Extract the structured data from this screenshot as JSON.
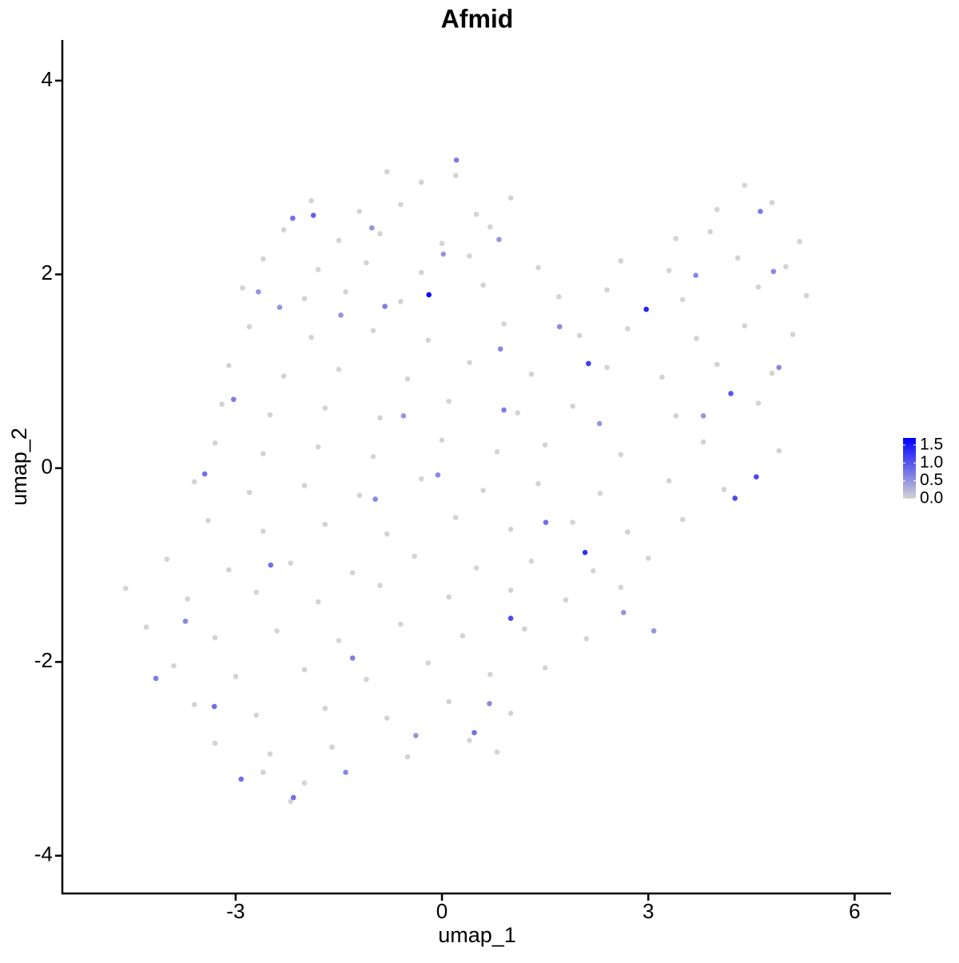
{
  "chart_data": {
    "type": "scatter",
    "title": "Afmid",
    "x_label": "umap_1",
    "y_label": "umap_2",
    "xlim": [
      -5.52,
      6.53
    ],
    "ylim": [
      -4.39,
      4.42
    ],
    "xticks": [
      -3,
      0,
      3,
      6
    ],
    "yticks": [
      -4,
      -2,
      0,
      2,
      4
    ],
    "color_low": "#d3d3d3",
    "color_high": "#0000ff",
    "color_lim": [
      0,
      1.7
    ],
    "color_ticks": [
      {
        "value": 0,
        "label": "0.0"
      },
      {
        "value": 0.5,
        "label": "0.5"
      },
      {
        "value": 1,
        "label": "1.0"
      },
      {
        "value": 1.5,
        "label": "1.5"
      }
    ],
    "x": [
      -0.8,
      -0.3,
      0.2,
      4.4,
      -1.9,
      -1.2,
      -0.6,
      0.5,
      1.0,
      4.0,
      4.8,
      -2.3,
      -1.5,
      -0.9,
      0.0,
      0.7,
      3.4,
      3.9,
      5.2,
      -2.6,
      -1.8,
      -1.1,
      -0.3,
      0.4,
      1.4,
      2.6,
      3.3,
      4.3,
      5.0,
      -2.9,
      -2.0,
      -1.4,
      -0.6,
      0.6,
      1.7,
      2.4,
      3.5,
      4.6,
      5.3,
      -2.8,
      -1.9,
      -1.0,
      -0.2,
      0.9,
      2.0,
      2.7,
      3.7,
      4.4,
      5.1,
      -3.1,
      -2.3,
      -1.5,
      -0.5,
      0.4,
      1.3,
      2.4,
      3.2,
      4.0,
      4.8,
      -3.2,
      -2.5,
      -1.7,
      -0.9,
      0.1,
      1.1,
      1.9,
      3.4,
      4.6,
      -3.3,
      -2.6,
      -1.8,
      -1.0,
      0.0,
      0.8,
      1.5,
      2.6,
      3.8,
      4.9,
      -3.6,
      -2.8,
      -2.0,
      -1.2,
      -0.3,
      0.6,
      1.4,
      2.3,
      3.3,
      4.1,
      -3.4,
      -2.6,
      -1.7,
      -0.8,
      0.2,
      1.0,
      1.9,
      2.7,
      3.5,
      -4.0,
      -3.1,
      -2.2,
      -1.3,
      -0.4,
      0.5,
      1.3,
      2.2,
      3.0,
      -4.6,
      -3.7,
      -2.7,
      -1.8,
      -0.9,
      0.1,
      1.0,
      1.8,
      2.6,
      -4.3,
      -3.3,
      -2.4,
      -1.5,
      -0.6,
      0.3,
      1.2,
      2.1,
      -3.9,
      -3.0,
      -2.0,
      -1.1,
      -0.2,
      0.7,
      1.5,
      -3.6,
      -2.7,
      -1.7,
      -0.8,
      0.1,
      1.0,
      -3.3,
      -2.5,
      -1.6,
      -0.5,
      0.4,
      0.8,
      -2.6,
      -2.0,
      -2.2,
      -0.19,
      2.97,
      2.13,
      2.08,
      1.0,
      4.26,
      4.57,
      4.2,
      -2.17,
      -1.87,
      0.21,
      -3.03,
      -3.45,
      -3.31,
      -2.92,
      -2.16,
      -2.49,
      -0.83,
      1.51,
      -4.16,
      -1.3,
      0.47,
      0.69,
      1.71,
      3.69,
      4.82,
      4.63,
      4.9,
      0.9,
      -0.56,
      -1.47,
      -2.36,
      -2.67,
      -0.97,
      -0.06,
      -3.73,
      -1.4,
      -0.38,
      2.29,
      3.8,
      0.85,
      0.83,
      0.02,
      -1.02,
      3.08,
      2.64
    ],
    "y": [
      3.06,
      2.95,
      3.02,
      2.92,
      2.76,
      2.65,
      2.72,
      2.62,
      2.79,
      2.67,
      2.74,
      2.46,
      2.35,
      2.42,
      2.32,
      2.49,
      2.37,
      2.44,
      2.34,
      2.16,
      2.05,
      2.12,
      2.02,
      2.19,
      2.07,
      2.14,
      2.04,
      2.17,
      2.08,
      1.86,
      1.75,
      1.82,
      1.72,
      1.89,
      1.77,
      1.84,
      1.74,
      1.87,
      1.78,
      1.46,
      1.35,
      1.42,
      1.32,
      1.49,
      1.37,
      1.44,
      1.34,
      1.47,
      1.38,
      1.06,
      0.95,
      1.02,
      0.92,
      1.09,
      0.97,
      1.04,
      0.94,
      1.07,
      0.98,
      0.66,
      0.55,
      0.62,
      0.52,
      0.69,
      0.57,
      0.64,
      0.54,
      0.67,
      0.26,
      0.15,
      0.22,
      0.12,
      0.29,
      0.17,
      0.24,
      0.14,
      0.27,
      0.18,
      -0.14,
      -0.25,
      -0.18,
      -0.28,
      -0.11,
      -0.23,
      -0.16,
      -0.26,
      -0.13,
      -0.22,
      -0.54,
      -0.65,
      -0.58,
      -0.68,
      -0.51,
      -0.63,
      -0.56,
      -0.66,
      -0.53,
      -0.94,
      -1.05,
      -0.98,
      -1.08,
      -0.91,
      -1.03,
      -0.96,
      -1.06,
      -0.93,
      -1.24,
      -1.35,
      -1.28,
      -1.38,
      -1.21,
      -1.33,
      -1.26,
      -1.36,
      -1.23,
      -1.64,
      -1.75,
      -1.68,
      -1.78,
      -1.61,
      -1.73,
      -1.66,
      -1.76,
      -2.04,
      -2.15,
      -2.08,
      -2.18,
      -2.01,
      -2.13,
      -2.06,
      -2.44,
      -2.55,
      -2.48,
      -2.58,
      -2.41,
      -2.53,
      -2.84,
      -2.95,
      -2.88,
      -2.98,
      -2.81,
      -2.93,
      -3.14,
      -3.25,
      -3.44,
      1.79,
      1.64,
      1.08,
      -0.87,
      -1.55,
      -0.31,
      -0.09,
      0.77,
      2.58,
      2.61,
      3.18,
      0.71,
      -0.06,
      -2.46,
      -3.21,
      -3.4,
      -1.0,
      1.67,
      -0.56,
      -2.17,
      -1.96,
      -2.73,
      -2.43,
      1.46,
      1.99,
      2.03,
      2.65,
      1.04,
      0.6,
      0.54,
      1.58,
      1.66,
      1.82,
      -0.32,
      -0.07,
      -1.58,
      -3.14,
      -2.76,
      0.46,
      0.54,
      1.23,
      2.36,
      2.21,
      2.48,
      -1.68,
      -1.49
    ],
    "expression": [
      0,
      0,
      0,
      0,
      0,
      0,
      0,
      0,
      0,
      0,
      0,
      0,
      0,
      0,
      0,
      0,
      0,
      0,
      0,
      0,
      0,
      0,
      0,
      0,
      0,
      0,
      0,
      0,
      0,
      0,
      0,
      0,
      0,
      0,
      0,
      0,
      0,
      0,
      0,
      0,
      0,
      0,
      0,
      0,
      0,
      0,
      0,
      0,
      0,
      0,
      0,
      0,
      0,
      0,
      0,
      0,
      0,
      0,
      0,
      0,
      0,
      0,
      0,
      0,
      0,
      0,
      0,
      0,
      0,
      0,
      0,
      0,
      0,
      0,
      0,
      0,
      0,
      0,
      0,
      0,
      0,
      0,
      0,
      0,
      0,
      0,
      0,
      0,
      0,
      0,
      0,
      0,
      0,
      0,
      0,
      0,
      0,
      0,
      0,
      0,
      0,
      0,
      0,
      0,
      0,
      0,
      0,
      0,
      0,
      0,
      0,
      0,
      0,
      0,
      0,
      0,
      0,
      0,
      0,
      0,
      0,
      0,
      0,
      0,
      0,
      0,
      0,
      0,
      0,
      0,
      0,
      0,
      0,
      0,
      0,
      0,
      0,
      0,
      0,
      0,
      0,
      0,
      0,
      0,
      0,
      1.6,
      1.4,
      1.2,
      1.3,
      1.1,
      1.1,
      1.1,
      1.0,
      0.8,
      0.9,
      0.7,
      0.7,
      0.8,
      0.8,
      0.8,
      0.8,
      0.8,
      0.7,
      0.8,
      0.7,
      0.7,
      0.8,
      0.6,
      0.6,
      0.6,
      0.6,
      0.7,
      0.6,
      0.7,
      0.5,
      0.5,
      0.5,
      0.5,
      0.6,
      0.6,
      0.6,
      0.6,
      0.5,
      0.5,
      0.5,
      0.6,
      0.5,
      0.5,
      0.5,
      0.5,
      0.5
    ]
  }
}
